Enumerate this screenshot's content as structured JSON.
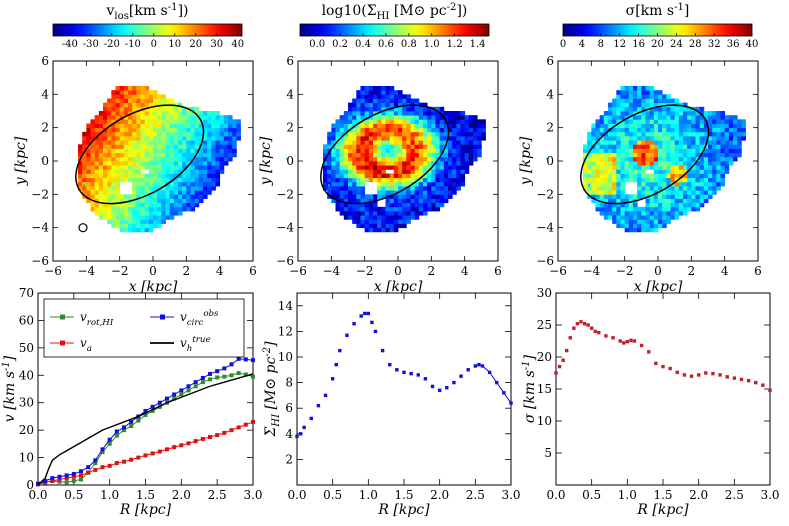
{
  "chart_data": [
    {
      "type": "heatmap",
      "panel": "velocity-map",
      "colorbar_title": "v_los[km s^-1])",
      "colorbar_ticks": [
        -40,
        -30,
        -20,
        -10,
        0,
        10,
        20,
        30,
        40
      ],
      "colorbar_range": [
        -48,
        42
      ],
      "xlabel": "x [kpc]",
      "ylabel": "y [kpc]",
      "xlim": [
        -6,
        6
      ],
      "ylim": [
        -6,
        6
      ],
      "xticks": [
        -6,
        -4,
        -2,
        0,
        2,
        4,
        6
      ],
      "yticks": [
        -6,
        -4,
        -2,
        0,
        2,
        4,
        6
      ],
      "ellipse": {
        "cx": -0.8,
        "cy": 0.4,
        "a": 4.2,
        "b": 2.4,
        "pa_deg": 30
      }
    },
    {
      "type": "heatmap",
      "panel": "surface-density-map",
      "colorbar_title": "log10(Σ_HI [M⊙ pc^-2])",
      "colorbar_ticks": [
        0.0,
        0.2,
        0.4,
        0.6,
        0.8,
        1.0,
        1.2,
        1.4
      ],
      "colorbar_labels": [
        "0.0",
        "0.2",
        "0.4",
        "0.6",
        "0.8",
        "1.0",
        "1.2",
        "1.4"
      ],
      "colorbar_range": [
        -0.15,
        1.5
      ],
      "xlabel": "x [kpc]",
      "ylabel": "y [kpc]",
      "xlim": [
        -6,
        6
      ],
      "ylim": [
        -6,
        6
      ],
      "xticks": [
        -6,
        -4,
        -2,
        0,
        2,
        4,
        6
      ],
      "yticks": [
        -6,
        -4,
        -2,
        0,
        2,
        4,
        6
      ]
    },
    {
      "type": "heatmap",
      "panel": "dispersion-map",
      "colorbar_title": "σ[km s^-1]",
      "colorbar_ticks": [
        0,
        4,
        8,
        12,
        16,
        20,
        24,
        28,
        32,
        36,
        40
      ],
      "colorbar_range": [
        0,
        40
      ],
      "xlabel": "x [kpc]",
      "ylabel": "y [kpc]",
      "xlim": [
        -6,
        6
      ],
      "ylim": [
        -6,
        6
      ],
      "xticks": [
        -6,
        -4,
        -2,
        0,
        2,
        4,
        6
      ],
      "yticks": [
        -6,
        -4,
        -2,
        0,
        2,
        4,
        6
      ]
    },
    {
      "type": "line",
      "panel": "rotation-curve",
      "xlabel": "R [kpc]",
      "ylabel": "v [km s^-1]",
      "xlim": [
        0,
        3
      ],
      "ylim": [
        0,
        70
      ],
      "xticks": [
        0.0,
        0.5,
        1.0,
        1.5,
        2.0,
        2.5,
        3.0
      ],
      "yticks": [
        0,
        10,
        20,
        30,
        40,
        50,
        60,
        70
      ],
      "series": [
        {
          "name": "v_rot,HI",
          "color": "#2e8b2e",
          "marker": "square",
          "x": [
            0.0,
            0.1,
            0.2,
            0.3,
            0.4,
            0.5,
            0.6,
            0.7,
            0.8,
            0.9,
            1.0,
            1.1,
            1.2,
            1.3,
            1.4,
            1.5,
            1.6,
            1.7,
            1.8,
            1.9,
            2.0,
            2.1,
            2.2,
            2.3,
            2.4,
            2.5,
            2.6,
            2.7,
            2.8,
            2.9,
            3.0
          ],
          "y": [
            0.3,
            1.0,
            1.5,
            1.2,
            1.0,
            1.5,
            2.0,
            4.5,
            8.0,
            12.0,
            15.0,
            18.0,
            20.0,
            21.5,
            23.5,
            25.5,
            27.0,
            28.5,
            30.0,
            31.5,
            33.0,
            34.5,
            36.0,
            37.5,
            38.5,
            39.2,
            39.5,
            40.0,
            40.8,
            40.3,
            39.5
          ]
        },
        {
          "name": "v_a",
          "color": "#e01010",
          "marker": "square",
          "x": [
            0.0,
            0.1,
            0.2,
            0.3,
            0.4,
            0.5,
            0.6,
            0.7,
            0.8,
            0.9,
            1.0,
            1.1,
            1.2,
            1.3,
            1.4,
            1.5,
            1.6,
            1.7,
            1.8,
            1.9,
            2.0,
            2.1,
            2.2,
            2.3,
            2.4,
            2.5,
            2.6,
            2.7,
            2.8,
            2.9,
            3.0
          ],
          "y": [
            0.2,
            1.0,
            1.5,
            2.0,
            2.5,
            3.0,
            3.5,
            4.5,
            5.5,
            6.5,
            7.0,
            8.0,
            8.5,
            9.2,
            10.0,
            10.8,
            11.5,
            12.2,
            13.0,
            13.8,
            14.5,
            15.2,
            16.0,
            16.8,
            17.5,
            18.2,
            19.0,
            20.0,
            21.0,
            22.0,
            23.0
          ]
        },
        {
          "name": "v_circ^obs",
          "color": "#1010e0",
          "marker": "square",
          "x": [
            0.0,
            0.1,
            0.2,
            0.3,
            0.4,
            0.5,
            0.6,
            0.7,
            0.8,
            0.9,
            1.0,
            1.1,
            1.2,
            1.3,
            1.4,
            1.5,
            1.6,
            1.7,
            1.8,
            1.9,
            2.0,
            2.1,
            2.2,
            2.3,
            2.4,
            2.5,
            2.6,
            2.7,
            2.8,
            2.9,
            3.0
          ],
          "y": [
            0.5,
            1.5,
            2.5,
            3.0,
            3.5,
            4.0,
            5.0,
            6.5,
            9.0,
            13.0,
            16.5,
            19.5,
            21.0,
            23.0,
            25.0,
            27.0,
            28.5,
            30.0,
            31.5,
            33.0,
            34.5,
            36.0,
            37.5,
            39.0,
            40.5,
            41.5,
            42.5,
            44.0,
            46.0,
            45.8,
            45.5
          ]
        },
        {
          "name": "v_h^true",
          "color": "#000000",
          "marker": "none",
          "x": [
            0.0,
            0.1,
            0.15,
            0.2,
            0.3,
            0.4,
            0.5,
            0.6,
            0.7,
            0.8,
            0.9,
            1.0,
            1.2,
            1.4,
            1.6,
            1.8,
            2.0,
            2.2,
            2.4,
            2.6,
            2.8,
            3.0
          ],
          "y": [
            0.0,
            2.5,
            6.0,
            9.0,
            11.0,
            12.5,
            14.0,
            15.5,
            17.0,
            18.5,
            20.0,
            21.0,
            23.0,
            25.0,
            27.5,
            30.0,
            32.0,
            34.0,
            36.0,
            37.5,
            39.0,
            40.5
          ]
        }
      ],
      "legend": [
        {
          "label": "v_rot,HI",
          "color": "#2e8b2e",
          "marker": "square"
        },
        {
          "label": "v_circ^obs",
          "color": "#1010e0",
          "marker": "square"
        },
        {
          "label": "v_a",
          "color": "#e01010",
          "marker": "square"
        },
        {
          "label": "v_h^true",
          "color": "#000000",
          "marker": "line"
        }
      ]
    },
    {
      "type": "scatter",
      "panel": "surface-density-profile",
      "xlabel": "R [kpc]",
      "ylabel": "Σ_HI [M⊙ pc^-2]",
      "xlim": [
        0,
        3
      ],
      "ylim": [
        0,
        15
      ],
      "xticks": [
        0.0,
        0.5,
        1.0,
        1.5,
        2.0,
        2.5,
        3.0
      ],
      "yticks": [
        2,
        4,
        6,
        8,
        10,
        12,
        14
      ],
      "series": [
        {
          "name": "Σ_HI",
          "color": "#1010e0",
          "marker": "square",
          "x": [
            0.0,
            0.05,
            0.1,
            0.2,
            0.3,
            0.4,
            0.5,
            0.55,
            0.6,
            0.7,
            0.8,
            0.9,
            0.95,
            1.0,
            1.05,
            1.1,
            1.2,
            1.3,
            1.4,
            1.5,
            1.6,
            1.7,
            1.8,
            1.9,
            2.0,
            2.1,
            2.2,
            2.3,
            2.4,
            2.5,
            2.55,
            2.6,
            2.7,
            2.8,
            2.9,
            3.0
          ],
          "y": [
            3.8,
            4.0,
            4.5,
            5.2,
            6.2,
            7.0,
            8.3,
            9.4,
            10.5,
            11.7,
            12.6,
            13.2,
            13.4,
            13.4,
            12.7,
            12.0,
            10.5,
            9.4,
            9.0,
            8.8,
            8.7,
            8.6,
            8.3,
            7.7,
            7.4,
            7.6,
            8.0,
            8.5,
            9.0,
            9.3,
            9.4,
            9.3,
            8.8,
            8.0,
            7.2,
            6.4
          ]
        }
      ]
    },
    {
      "type": "scatter",
      "panel": "dispersion-profile",
      "xlabel": "R [kpc]",
      "ylabel": "σ [km s^-1]",
      "xlim": [
        0,
        3
      ],
      "ylim": [
        0,
        30
      ],
      "xticks": [
        0.0,
        0.5,
        1.0,
        1.5,
        2.0,
        2.5,
        3.0
      ],
      "yticks": [
        5,
        10,
        15,
        20,
        25,
        30
      ],
      "series": [
        {
          "name": "σ",
          "color": "#c0202a",
          "marker": "square",
          "x": [
            0.0,
            0.05,
            0.1,
            0.15,
            0.2,
            0.25,
            0.3,
            0.35,
            0.4,
            0.45,
            0.5,
            0.55,
            0.6,
            0.7,
            0.8,
            0.9,
            0.95,
            1.0,
            1.05,
            1.1,
            1.2,
            1.3,
            1.4,
            1.5,
            1.6,
            1.7,
            1.8,
            1.9,
            2.0,
            2.1,
            2.2,
            2.3,
            2.4,
            2.5,
            2.6,
            2.7,
            2.8,
            2.9,
            3.0
          ],
          "y": [
            17.5,
            18.5,
            19.5,
            21.0,
            23.0,
            24.5,
            25.2,
            25.5,
            25.2,
            25.0,
            24.5,
            24.0,
            23.8,
            23.3,
            23.0,
            22.5,
            22.2,
            22.4,
            22.6,
            22.5,
            21.8,
            20.8,
            19.0,
            18.5,
            18.2,
            17.6,
            17.2,
            17.0,
            17.2,
            17.5,
            17.4,
            17.2,
            16.9,
            16.7,
            16.5,
            16.3,
            16.0,
            15.6,
            14.8
          ]
        }
      ]
    }
  ]
}
